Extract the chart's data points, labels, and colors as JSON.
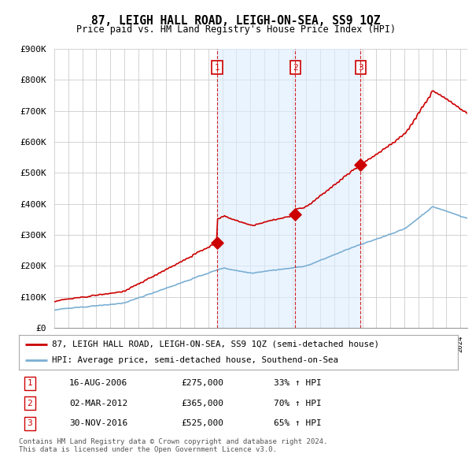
{
  "title": "87, LEIGH HALL ROAD, LEIGH-ON-SEA, SS9 1QZ",
  "subtitle": "Price paid vs. HM Land Registry's House Price Index (HPI)",
  "ylim": [
    0,
    900000
  ],
  "yticks": [
    0,
    100000,
    200000,
    300000,
    400000,
    500000,
    600000,
    700000,
    800000,
    900000
  ],
  "ytick_labels": [
    "£0",
    "£100K",
    "£200K",
    "£300K",
    "£400K",
    "£500K",
    "£600K",
    "£700K",
    "£800K",
    "£900K"
  ],
  "s1_year": 2006,
  "s1_month": 8,
  "s1_price": 275000,
  "s2_year": 2012,
  "s2_month": 3,
  "s2_price": 365000,
  "s3_year": 2016,
  "s3_month": 11,
  "s3_price": 525000,
  "legend_line1": "87, LEIGH HALL ROAD, LEIGH-ON-SEA, SS9 1QZ (semi-detached house)",
  "legend_line2": "HPI: Average price, semi-detached house, Southend-on-Sea",
  "table_rows": [
    [
      "1",
      "16-AUG-2006",
      "£275,000",
      "33% ↑ HPI"
    ],
    [
      "2",
      "02-MAR-2012",
      "£365,000",
      "70% ↑ HPI"
    ],
    [
      "3",
      "30-NOV-2016",
      "£525,000",
      "65% ↑ HPI"
    ]
  ],
  "footer": "Contains HM Land Registry data © Crown copyright and database right 2024.\nThis data is licensed under the Open Government Licence v3.0.",
  "red_color": "#cc0000",
  "blue_color": "#7bafd4",
  "fill_color": "#ddeeff",
  "vline_color": "#cc0000",
  "grid_color": "#cccccc",
  "background_color": "#ffffff",
  "xlim_start": 1995.0,
  "xlim_end": 2024.5
}
